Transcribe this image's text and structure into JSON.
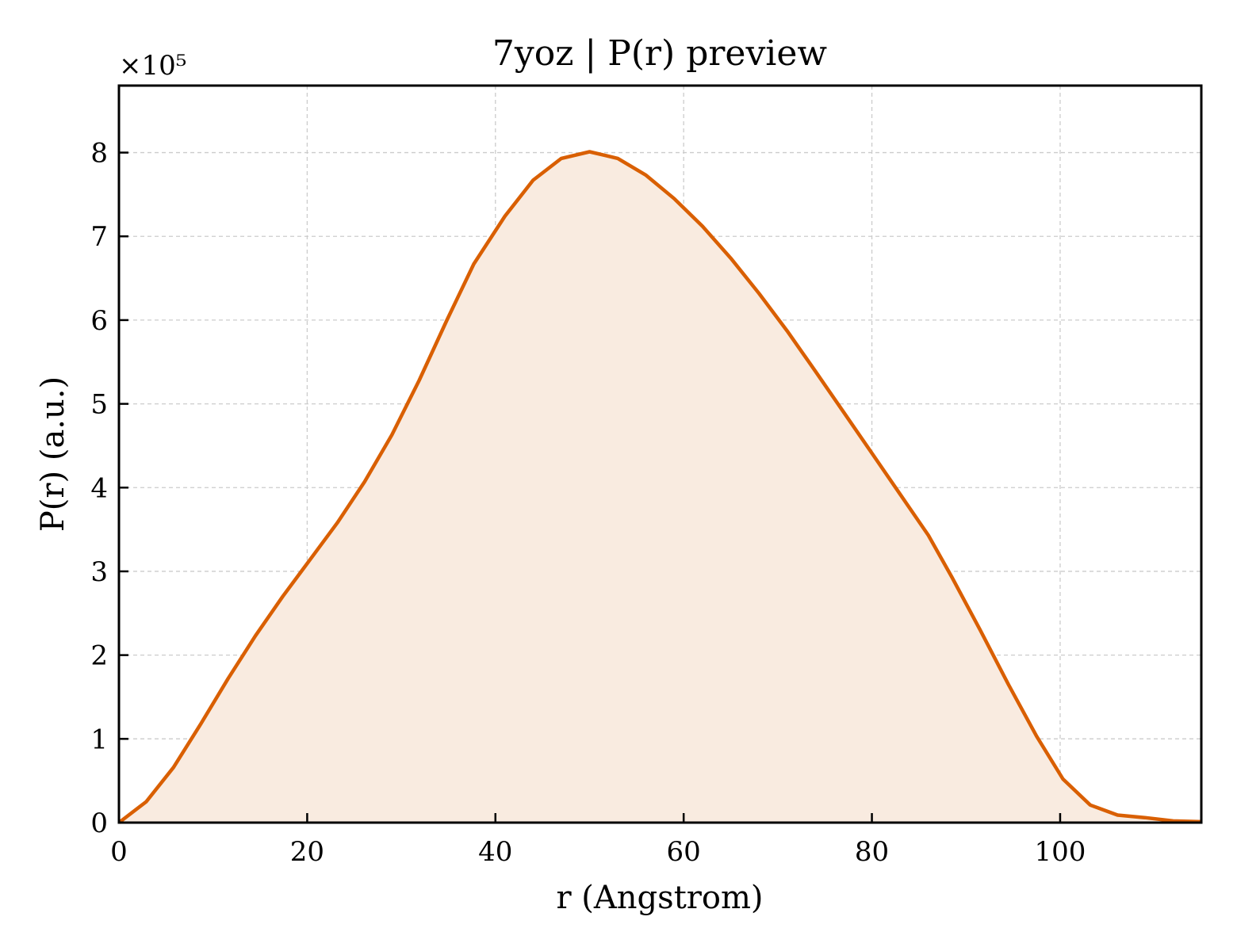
{
  "chart_data": {
    "type": "area",
    "title": "7yoz | P(r) preview",
    "xlabel": "r (Angstrom)",
    "ylabel": "P(r) (a.u.)",
    "y_multiplier_label": "×10⁵",
    "xlim": [
      0,
      115
    ],
    "ylim": [
      0,
      8.8
    ],
    "x_ticks": [
      0,
      20,
      40,
      60,
      80,
      100
    ],
    "y_ticks": [
      0,
      1,
      2,
      3,
      4,
      5,
      6,
      7,
      8
    ],
    "grid": true,
    "legend": "none",
    "colors": {
      "line": "#d95f02",
      "fill": "#f9ebe0"
    },
    "series": [
      {
        "x": [
          0,
          2.9,
          5.8,
          8.7,
          11.6,
          14.5,
          17.4,
          20.3,
          23.2,
          26.1,
          29.0,
          31.9,
          34.8,
          37.7,
          41.0,
          44.0,
          47.0,
          50.0,
          53.0,
          56.0,
          59.0,
          62.0,
          65.0,
          68.0,
          71.0,
          74.0,
          77.0,
          80.0,
          83.0,
          86.0,
          88.5,
          91.5,
          94.5,
          97.5,
          100.3,
          103.2,
          106.1,
          109.0,
          112.0,
          115.0
        ],
        "y": [
          0,
          0.25,
          0.66,
          1.18,
          1.72,
          2.23,
          2.7,
          3.14,
          3.58,
          4.07,
          4.63,
          5.28,
          5.99,
          6.67,
          7.24,
          7.67,
          7.93,
          8.01,
          7.93,
          7.73,
          7.45,
          7.12,
          6.74,
          6.32,
          5.87,
          5.39,
          4.9,
          4.41,
          3.92,
          3.43,
          2.93,
          2.3,
          1.65,
          1.03,
          0.52,
          0.21,
          0.09,
          0.06,
          0.02,
          0.01
        ]
      }
    ]
  }
}
